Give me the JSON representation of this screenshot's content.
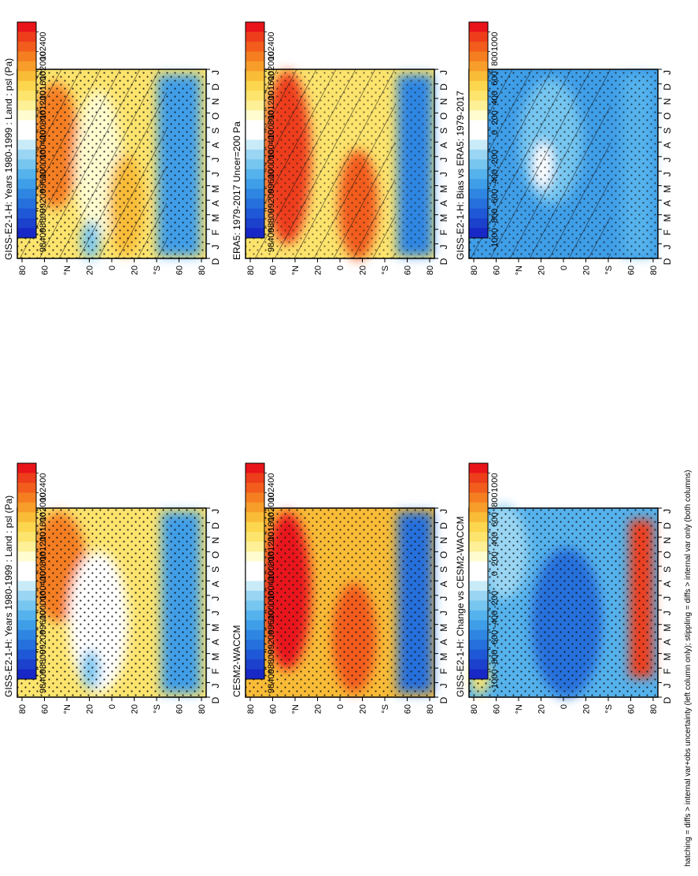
{
  "footnote": "hatching = diffs > internal var+obs uncertainty (left column only); stippling = diffs > internal var only (both columns)",
  "month_ticks": [
    "D",
    "J",
    "F",
    "M",
    "A",
    "M",
    "J",
    "J",
    "A",
    "S",
    "O",
    "N",
    "D",
    "J"
  ],
  "lat_ticks": [
    "80",
    "60",
    "°N",
    "20",
    "0",
    "20",
    "°S",
    "60",
    "80"
  ],
  "abs_colorbar": {
    "labels": [
      "102400",
      "102000",
      "101600",
      "101200",
      "100800",
      "100400",
      "100000",
      "99600",
      "99200",
      "98800",
      "98400"
    ],
    "colors": [
      "#e8141a",
      "#ee3d1a",
      "#f25c1c",
      "#f57e21",
      "#f79d2a",
      "#f9bc37",
      "#fcd64e",
      "#fde46d",
      "#fef097",
      "#fffcd0",
      "#ffffff",
      "#ffffff",
      "#c9ebf8",
      "#9ad6f3",
      "#76c6f0",
      "#55b2ec",
      "#3f9ee8",
      "#2f86e2",
      "#2570dc",
      "#1f58d6",
      "#1b41cd",
      "#1728c6"
    ]
  },
  "diff_colorbar": {
    "labels": [
      "1000",
      "800",
      "600",
      "400",
      "200",
      "0",
      "-200",
      "-400",
      "-600",
      "-800",
      "-1000"
    ],
    "colors": [
      "#e8141a",
      "#ee3d1a",
      "#f25c1c",
      "#f57e21",
      "#f79d2a",
      "#f9bc37",
      "#fcd64e",
      "#fde46d",
      "#fef097",
      "#fffcd0",
      "#ffffff",
      "#ffffff",
      "#c9ebf8",
      "#9ad6f3",
      "#76c6f0",
      "#55b2ec",
      "#3f9ee8",
      "#2f86e2",
      "#2570dc",
      "#1f58d6",
      "#1b41cd",
      "#1728c6"
    ]
  },
  "chart_data": [
    {
      "type": "heatmap",
      "title": "GISS-E2-1-H: Years 1980-1999 : Land : psl (Pa)",
      "x": [
        "D",
        "J",
        "F",
        "M",
        "A",
        "M",
        "J",
        "J",
        "A",
        "S",
        "O",
        "N",
        "D",
        "J"
      ],
      "y_ticks": [
        "80",
        "60",
        "°N",
        "20",
        "0",
        "20",
        "°S",
        "60",
        "80"
      ],
      "colorbar": "abs",
      "hatching": true,
      "stippling": true,
      "summary": {
        "max_approx": 102400,
        "min_approx": 98400
      }
    },
    {
      "type": "heatmap",
      "title": "ERA5: 1979-2017 Uncer=200 Pa",
      "x": [
        "D",
        "J",
        "F",
        "M",
        "A",
        "M",
        "J",
        "J",
        "A",
        "S",
        "O",
        "N",
        "D",
        "J"
      ],
      "y_ticks": [
        "80",
        "60",
        "°N",
        "20",
        "0",
        "20",
        "°S",
        "60",
        "80"
      ],
      "colorbar": "abs",
      "hatching": true,
      "stippling": true,
      "summary": {
        "max_approx": 102400,
        "min_approx": 98400
      }
    },
    {
      "type": "heatmap",
      "title": "GISS-E2-1-H: Bias vs ERA5: 1979-2017",
      "x": [
        "D",
        "J",
        "F",
        "M",
        "A",
        "M",
        "J",
        "J",
        "A",
        "S",
        "O",
        "N",
        "D",
        "J"
      ],
      "y_ticks": [
        "80",
        "60",
        "°N",
        "20",
        "0",
        "20",
        "°S",
        "60",
        "80"
      ],
      "colorbar": "diff",
      "hatching": true,
      "stippling": true,
      "summary": {
        "max_approx": 400,
        "min_approx": -1000
      }
    },
    {
      "type": "heatmap",
      "title": "GISS-E2-1-H: Years 1980-1999 : Land : psl (Pa)",
      "x": [
        "D",
        "J",
        "F",
        "M",
        "A",
        "M",
        "J",
        "J",
        "A",
        "S",
        "O",
        "N",
        "D",
        "J"
      ],
      "y_ticks": [
        "80",
        "60",
        "°N",
        "20",
        "0",
        "20",
        "°S",
        "60",
        "80"
      ],
      "colorbar": "abs",
      "hatching": false,
      "stippling": true,
      "summary": {
        "max_approx": 102400,
        "min_approx": 98400
      }
    },
    {
      "type": "heatmap",
      "title": "CESM2-WACCM",
      "x": [
        "D",
        "J",
        "F",
        "M",
        "A",
        "M",
        "J",
        "J",
        "A",
        "S",
        "O",
        "N",
        "D",
        "J"
      ],
      "y_ticks": [
        "80",
        "60",
        "°N",
        "20",
        "0",
        "20",
        "°S",
        "60",
        "80"
      ],
      "colorbar": "abs",
      "hatching": false,
      "stippling": true,
      "summary": {
        "max_approx": 102400,
        "min_approx": 98400
      }
    },
    {
      "type": "heatmap",
      "title": "GISS-E2-1-H: Change vs CESM2-WACCM",
      "x": [
        "D",
        "J",
        "F",
        "M",
        "A",
        "M",
        "J",
        "J",
        "A",
        "S",
        "O",
        "N",
        "D",
        "J"
      ],
      "y_ticks": [
        "80",
        "60",
        "°N",
        "20",
        "0",
        "20",
        "°S",
        "60",
        "80"
      ],
      "colorbar": "diff",
      "hatching": false,
      "stippling": true,
      "summary": {
        "max_approx": 1000,
        "min_approx": -1000
      }
    }
  ]
}
